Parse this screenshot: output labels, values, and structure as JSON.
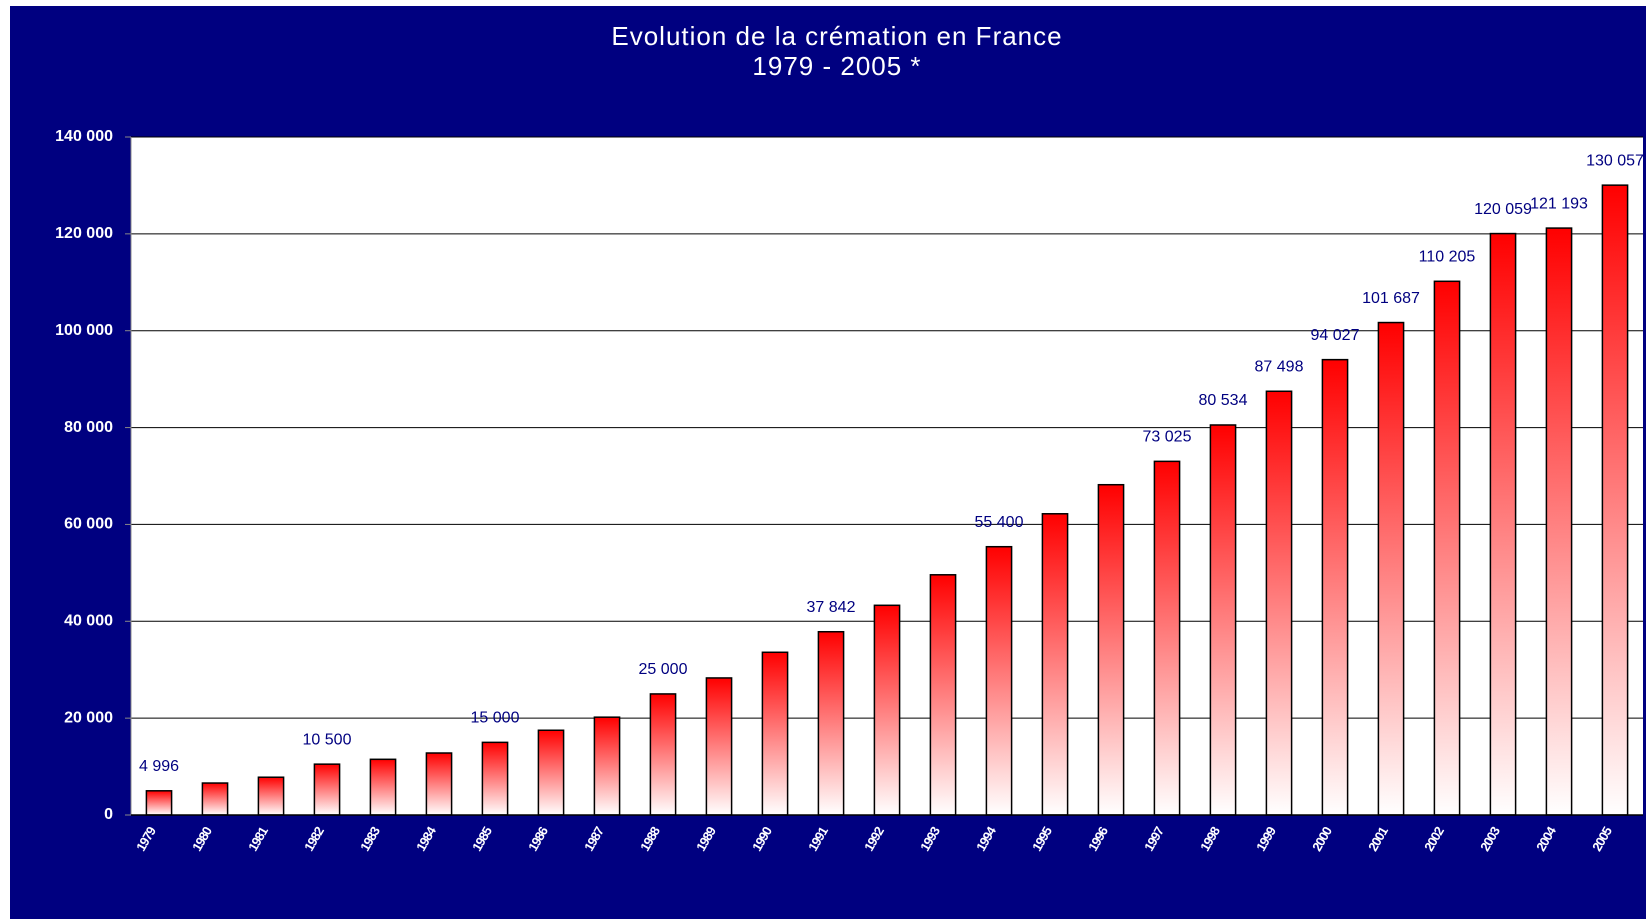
{
  "chart_data": {
    "type": "bar",
    "title": "Evolution de la crémation en France",
    "subtitle": "1979 - 2005 *",
    "categories": [
      "1979",
      "1980",
      "1981",
      "1982",
      "1983",
      "1984",
      "1985",
      "1986",
      "1987",
      "1988",
      "1989",
      "1990",
      "1991",
      "1992",
      "1993",
      "1994",
      "1995",
      "1996",
      "1997",
      "1998",
      "1999",
      "2000",
      "2001",
      "2002",
      "2003",
      "2004",
      "2005"
    ],
    "values": [
      4996,
      6600,
      7800,
      10500,
      11500,
      12800,
      15000,
      17500,
      20200,
      25000,
      28300,
      33600,
      37842,
      43300,
      49600,
      55400,
      62200,
      68200,
      73025,
      80534,
      87498,
      94027,
      101687,
      110205,
      120059,
      121193,
      130057
    ],
    "value_labels": [
      "4 996",
      null,
      null,
      "10 500",
      null,
      null,
      "15 000",
      null,
      null,
      "25 000",
      null,
      null,
      "37 842",
      null,
      null,
      "55 400",
      null,
      null,
      "73 025",
      "80 534",
      "87 498",
      "94 027",
      "101 687",
      "110 205",
      "120 059",
      "121 193",
      "130 057"
    ],
    "color": "#ff0000",
    "ylim": [
      0,
      140000
    ],
    "yticks": [
      0,
      {
        "value": 20000,
        "label": "20 000"
      },
      {
        "value": 40000,
        "label": "40 000"
      },
      {
        "value": 60000,
        "label": "60 000"
      },
      {
        "value": 80000,
        "label": "80 000"
      },
      {
        "value": 100000,
        "label": "100 000"
      },
      {
        "value": 120000,
        "label": "120 000"
      },
      {
        "value": 140000,
        "label": "140 000"
      }
    ],
    "grid": true
  }
}
